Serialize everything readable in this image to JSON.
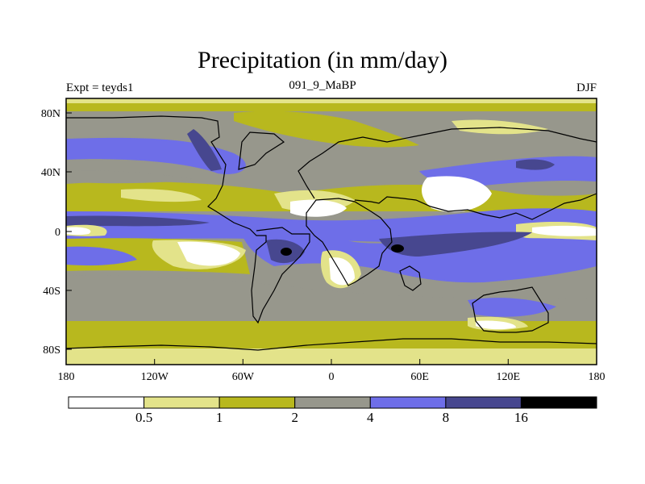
{
  "title": "Precipitation (in mm/day)",
  "subtitle_left": "Expt = teyds1",
  "subtitle_center": "091_9_MaBP",
  "subtitle_right": "DJF",
  "x_ticks": [
    "180",
    "120W",
    "60W",
    "0",
    "60E",
    "120E",
    "180"
  ],
  "y_ticks": [
    "80N",
    "40N",
    "0",
    "40S",
    "80S"
  ],
  "colorbar": {
    "labels": [
      "0.5",
      "1",
      "2",
      "4",
      "8",
      "16"
    ],
    "colors": [
      "#ffffff",
      "#e3e38a",
      "#b8b81e",
      "#97978c",
      "#6e6ee8",
      "#47478f",
      "#000000"
    ]
  }
}
